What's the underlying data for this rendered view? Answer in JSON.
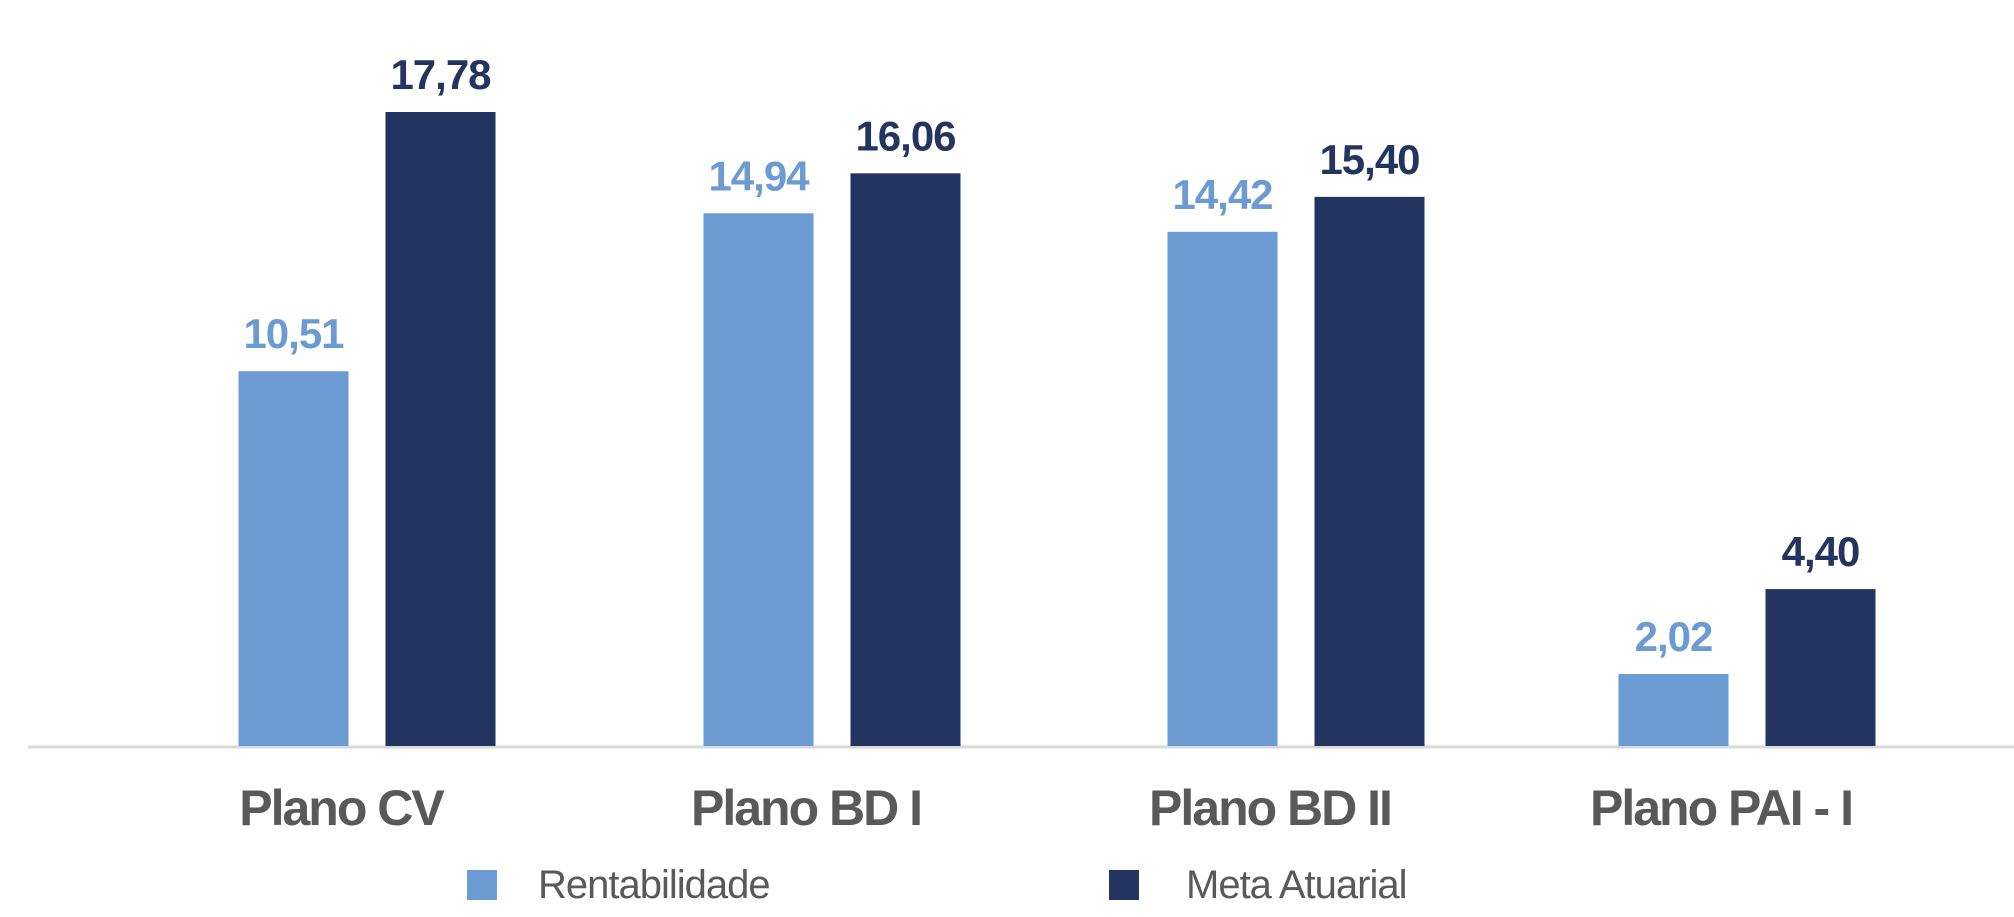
{
  "chart_data": {
    "type": "bar",
    "categories": [
      "Plano CV",
      "Plano BD I",
      "Plano BD II",
      "Plano PAI - I"
    ],
    "series": [
      {
        "name": "Rentabilidade",
        "values": [
          10.51,
          14.94,
          14.42,
          2.02
        ],
        "labels": [
          "10,51",
          "14,94",
          "14,42",
          "2,02"
        ],
        "color": "#6b9bd2"
      },
      {
        "name": "Meta Atuarial",
        "values": [
          17.78,
          16.06,
          15.4,
          4.4
        ],
        "labels": [
          "17,78",
          "16,06",
          "15,40",
          "4,40"
        ],
        "color": "#22345f"
      }
    ],
    "ylim": [
      0,
      17.78
    ],
    "grid": false,
    "legend_position": "bottom-center",
    "colors": {
      "baseline": "#d9d9d9",
      "category_text": "#595959",
      "legend_text": "#595959"
    }
  }
}
